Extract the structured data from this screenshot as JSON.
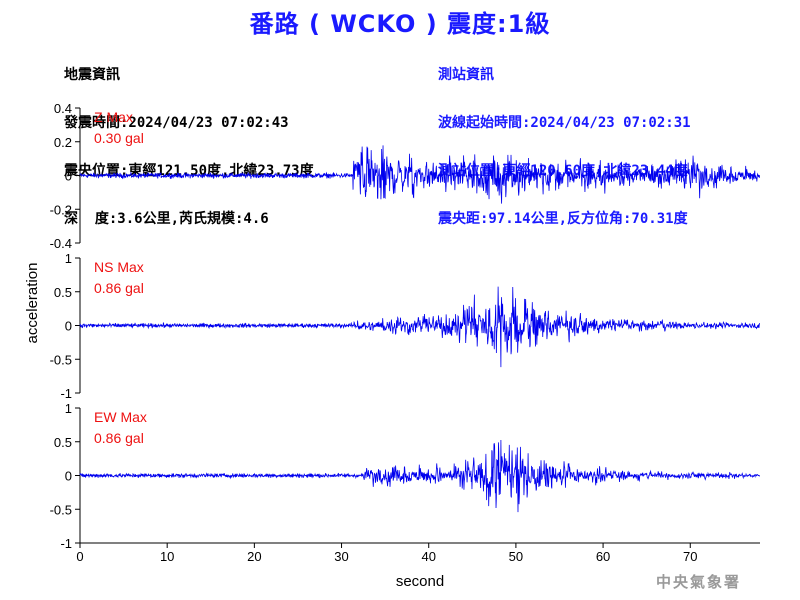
{
  "title": "番路 ( WCKO ) 震度:1級",
  "earthquake_info": {
    "heading": "地震資訊",
    "origin_time": "發震時間:2024/04/23 07:02:43",
    "epicenter": "震央位置:東經121.50度,北緯23.73度",
    "depth_magnitude": "深  度:3.6公里,芮氏規模:4.6"
  },
  "station_info": {
    "heading": "測站資訊",
    "wave_start": "波線起始時間:2024/04/23 07:02:31",
    "station_location": "測站位置:東經120.60度,北緯23.44度",
    "distance_azimuth": "震央距:97.14公里,反方位角:70.31度"
  },
  "agency": "中央氣象署",
  "colors": {
    "title": "#1a1aff",
    "trace": "#0000ee",
    "max_label": "#ee1111",
    "station_text": "#1a1aff"
  },
  "chart_data": {
    "type": "line",
    "xlabel": "second",
    "ylabel": "acceleration",
    "xlim": [
      0,
      78
    ],
    "x_ticks": [
      "0",
      "10",
      "20",
      "30",
      "40",
      "50",
      "60",
      "70"
    ],
    "panels": [
      {
        "component": "Z",
        "max_label": "Z Max",
        "max_value": "0.30 gal",
        "ylim": [
          -0.4,
          0.4
        ],
        "y_ticks": [
          0.4,
          0.2,
          0,
          -0.2,
          -0.4
        ],
        "y_tick_labels": [
          "0.4",
          "0.2",
          "0",
          "-0.2",
          "-0.4"
        ],
        "noise_amplitude": 0.012,
        "onset_s": 31.3,
        "peak_abs": 0.3,
        "envelope": [
          [
            31.3,
            0.22
          ],
          [
            33,
            0.27
          ],
          [
            35,
            0.24
          ],
          [
            38,
            0.17
          ],
          [
            42,
            0.13
          ],
          [
            46,
            0.2
          ],
          [
            49,
            0.22
          ],
          [
            52,
            0.16
          ],
          [
            56,
            0.11
          ],
          [
            60,
            0.12
          ],
          [
            64,
            0.08
          ],
          [
            68,
            0.12
          ],
          [
            70,
            0.2
          ],
          [
            72,
            0.1
          ],
          [
            78,
            0.06
          ]
        ]
      },
      {
        "component": "NS",
        "max_label": "NS Max",
        "max_value": "0.86 gal",
        "ylim": [
          -1,
          1
        ],
        "y_ticks": [
          1,
          0.5,
          0,
          -0.5,
          -1
        ],
        "y_tick_labels": [
          "1",
          "0.5",
          "0",
          "-0.5",
          "-1"
        ],
        "noise_amplitude": 0.025,
        "onset_s": 31.3,
        "peak_abs": 0.86,
        "envelope": [
          [
            31.3,
            0.12
          ],
          [
            34,
            0.15
          ],
          [
            38,
            0.22
          ],
          [
            42,
            0.3
          ],
          [
            45,
            0.45
          ],
          [
            47,
            0.72
          ],
          [
            48.5,
            0.86
          ],
          [
            50,
            0.72
          ],
          [
            52,
            0.48
          ],
          [
            55,
            0.3
          ],
          [
            58,
            0.2
          ],
          [
            62,
            0.12
          ],
          [
            68,
            0.09
          ],
          [
            72,
            0.07
          ],
          [
            78,
            0.06
          ]
        ]
      },
      {
        "component": "EW",
        "max_label": "EW Max",
        "max_value": "0.86 gal",
        "ylim": [
          -1,
          1
        ],
        "y_ticks": [
          1,
          0.5,
          0,
          -0.5,
          -1
        ],
        "y_tick_labels": [
          "1",
          "0.5",
          "0",
          "-0.5",
          "-1"
        ],
        "noise_amplitude": 0.025,
        "onset_s": 32.5,
        "peak_abs": 0.86,
        "envelope": [
          [
            32.5,
            0.17
          ],
          [
            36,
            0.21
          ],
          [
            40,
            0.2
          ],
          [
            43,
            0.26
          ],
          [
            45,
            0.38
          ],
          [
            47,
            0.65
          ],
          [
            48,
            0.86
          ],
          [
            50,
            0.7
          ],
          [
            52,
            0.42
          ],
          [
            55,
            0.3
          ],
          [
            58,
            0.18
          ],
          [
            62,
            0.12
          ],
          [
            68,
            0.08
          ],
          [
            72,
            0.07
          ],
          [
            78,
            0.05
          ]
        ]
      }
    ]
  }
}
